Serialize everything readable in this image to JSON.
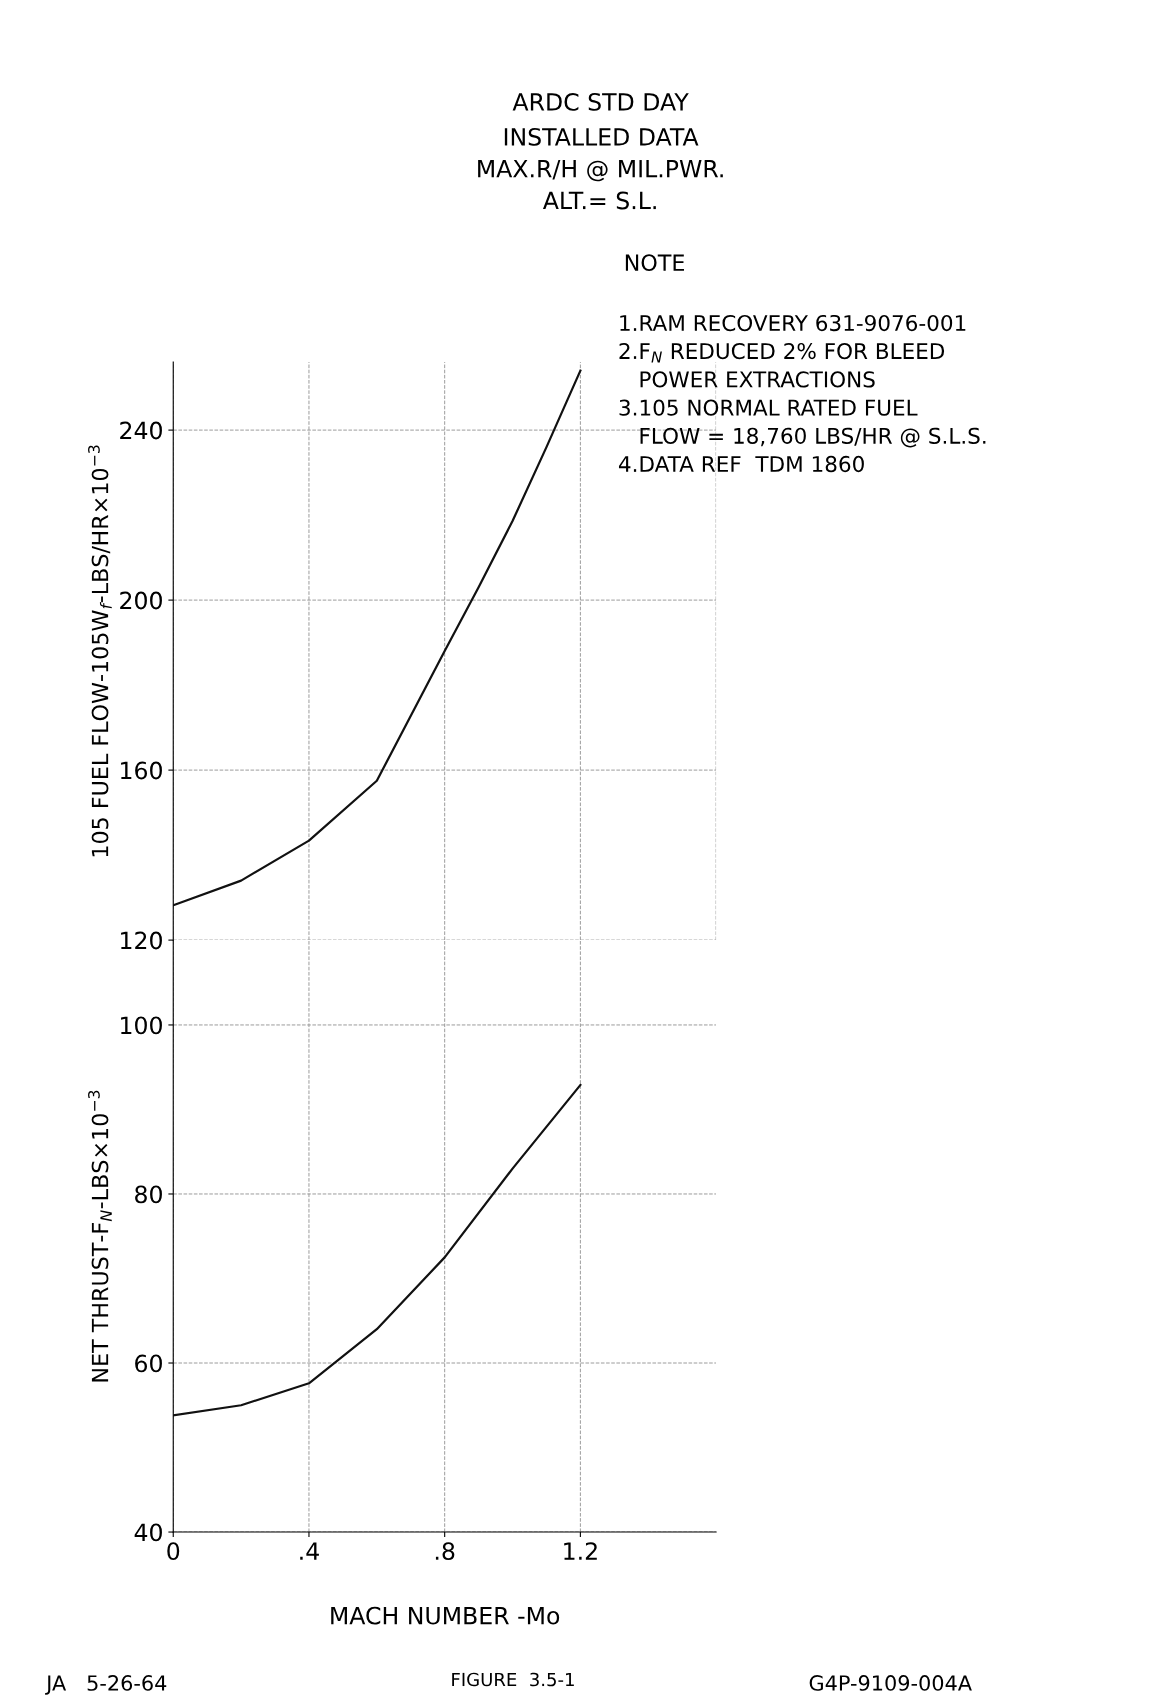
{
  "chart_data": [
    {
      "type": "line",
      "title": "ARDC STD DAY",
      "subtitle": "INSTALLED DATA\nMAX.R/H @ MIL.PWR.\nALT.= S.L.",
      "ylabel": "105 FUEL FLOW-105W$_{f}$-LBS/HR×10$^{−3}$",
      "annotations": [
        "NOTE",
        "1.RAM RECOVERY 631-9076-001\n2.F$_{N}$ REDUCED 2% FOR BLEED\n   POWER EXTRACTIONS\n3.105 NORMAL RATED FUEL\n   FLOW = 18,760 LBS/HR @ S.L.S.\n4.DATA REF  TDM 1860",
        "JA   5-26-64",
        "FIGURE  3.5-1",
        "G4P-9109-004A"
      ],
      "x": [
        0,
        0.2,
        0.4,
        0.6,
        0.8,
        0.9,
        1.0,
        1.1,
        1.2
      ],
      "series": [
        {
          "color": "#111111",
          "values": [
            128.2,
            134,
            143.4,
            157.5,
            188,
            203,
            218.6,
            236,
            254
          ]
        }
      ],
      "xlim": [
        0,
        1.6
      ],
      "ylim": [
        120,
        256
      ],
      "yticks": [
        120,
        160,
        200,
        240
      ],
      "tick_labels": "y",
      "grid": true,
      "line_style": "solid"
    },
    {
      "type": "line",
      "xlabel": "MACH NUMBER -Mo",
      "ylabel": "NET THRUST-F$_{N}$-LBS×10$^{−3}$",
      "x": [
        0,
        0.2,
        0.4,
        0.6,
        0.8,
        1.0,
        1.2
      ],
      "series": [
        {
          "color": "#111111",
          "values": [
            53.8,
            55,
            57.6,
            64,
            72.5,
            83,
            92.9
          ]
        }
      ],
      "xlim": [
        0,
        1.6
      ],
      "ylim": [
        40,
        110
      ],
      "yticks": [
        40,
        60,
        80,
        100
      ],
      "xticks": [
        {
          "value": 0,
          "label": "0"
        },
        {
          "value": 0.4,
          "label": ".4"
        },
        {
          "value": 0.8,
          "label": ".8"
        },
        {
          "value": 1.2,
          "label": "1.2"
        }
      ],
      "grid": true,
      "line_style": "solid"
    }
  ]
}
